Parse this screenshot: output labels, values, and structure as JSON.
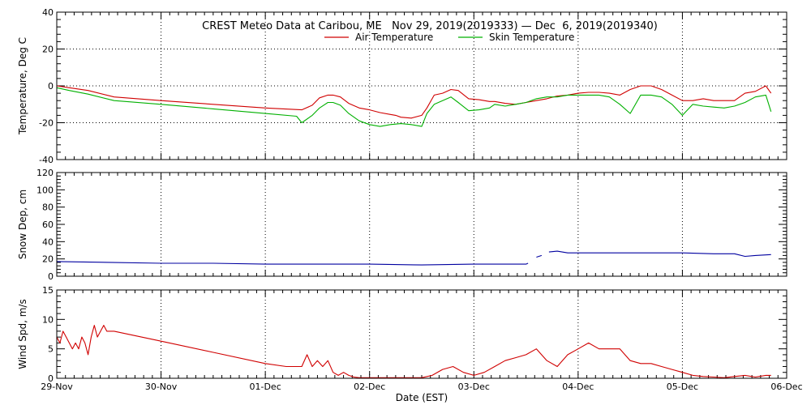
{
  "chart_data": {
    "type": "line",
    "title": "CREST Meteo Data at Caribou, ME   Nov 29, 2019(2019333) — Dec  6, 2019(2019340)",
    "xlabel": "Date (EST)",
    "x_ticks": [
      "29-Nov",
      "30-Nov",
      "01-Dec",
      "02-Dec",
      "03-Dec",
      "04-Dec",
      "05-Dec",
      "06-Dec"
    ],
    "xlim": [
      "2019-11-29",
      "2019-12-06"
    ],
    "panels": [
      {
        "ylabel": "Temperature, Deg C",
        "ylim": [
          -40,
          40
        ],
        "y_ticks": [
          -40,
          -20,
          0,
          20,
          40
        ],
        "legend": "top-center",
        "series": [
          {
            "name": "Air Temperature",
            "color": "#d00000",
            "x": [
              0,
              0.12,
              0.3,
              0.55,
              1.0,
              1.5,
              2.0,
              2.35,
              2.45,
              2.52,
              2.6,
              2.65,
              2.72,
              2.8,
              2.9,
              3.0,
              3.1,
              3.2,
              3.25,
              3.3,
              3.4,
              3.5,
              3.55,
              3.62,
              3.7,
              3.78,
              3.85,
              3.95,
              4.05,
              4.15,
              4.2,
              4.3,
              4.4,
              4.5,
              4.6,
              4.7,
              4.8,
              4.9,
              5.0,
              5.1,
              5.2,
              5.3,
              5.4,
              5.5,
              5.6,
              5.7,
              5.8,
              5.9,
              6.0,
              6.1,
              6.2,
              6.3,
              6.4,
              6.5,
              6.6,
              6.7,
              6.8,
              6.85
            ],
            "y": [
              0,
              -1,
              -2.5,
              -6,
              -8,
              -10,
              -12,
              -13,
              -10.5,
              -6.5,
              -5,
              -5,
              -6,
              -9.5,
              -12,
              -13,
              -14.5,
              -15.5,
              -16,
              -17,
              -17.5,
              -16,
              -12,
              -5,
              -4,
              -2,
              -2.5,
              -7,
              -7.5,
              -8.5,
              -8.5,
              -9.5,
              -10,
              -9,
              -8,
              -7,
              -5.5,
              -5,
              -4,
              -3.5,
              -3.5,
              -4,
              -5,
              -2,
              0,
              0,
              -2,
              -5,
              -8,
              -8,
              -7,
              -8,
              -8,
              -8,
              -4,
              -3,
              0,
              -4
            ]
          },
          {
            "name": "Skin Temperature",
            "color": "#00b000",
            "x": [
              0,
              0.12,
              0.3,
              0.55,
              1.0,
              1.5,
              2.0,
              2.3,
              2.35,
              2.45,
              2.52,
              2.6,
              2.65,
              2.72,
              2.8,
              2.9,
              3.0,
              3.1,
              3.2,
              3.3,
              3.4,
              3.5,
              3.55,
              3.62,
              3.7,
              3.78,
              3.85,
              3.95,
              4.05,
              4.15,
              4.2,
              4.3,
              4.4,
              4.5,
              4.6,
              4.7,
              4.8,
              4.9,
              5.0,
              5.1,
              5.2,
              5.3,
              5.4,
              5.5,
              5.6,
              5.7,
              5.8,
              5.9,
              6.0,
              6.1,
              6.2,
              6.3,
              6.4,
              6.5,
              6.6,
              6.7,
              6.8,
              6.85
            ],
            "y": [
              -1,
              -2.5,
              -4.5,
              -8,
              -10,
              -12.5,
              -15,
              -16.5,
              -20,
              -16,
              -12,
              -9,
              -9,
              -10.5,
              -15,
              -19,
              -21,
              -22,
              -21,
              -20.5,
              -21,
              -22,
              -15,
              -10,
              -8,
              -6,
              -9,
              -13.5,
              -13,
              -12,
              -10,
              -11,
              -10,
              -9,
              -7,
              -6,
              -6,
              -5,
              -5,
              -5,
              -5,
              -6,
              -10,
              -15,
              -5,
              -5,
              -6,
              -10,
              -16,
              -10,
              -11,
              -11.5,
              -12,
              -11,
              -9,
              -6,
              -5,
              -14
            ]
          }
        ]
      },
      {
        "ylabel": "Snow Dep, cm",
        "ylim": [
          0,
          120
        ],
        "y_ticks": [
          0,
          20,
          40,
          60,
          80,
          100,
          120
        ],
        "series": [
          {
            "color": "#0000a0",
            "segments": [
              {
                "x": [
                  0,
                  0.5,
                  1.0,
                  1.5,
                  2.0,
                  2.5,
                  3.0,
                  3.5,
                  4.0,
                  4.5,
                  4.52
                ],
                "y": [
                  17,
                  16,
                  15,
                  15,
                  14,
                  14,
                  14,
                  13,
                  14,
                  14,
                  15
                ]
              },
              {
                "x": [
                  4.6,
                  4.65
                ],
                "y": [
                  22,
                  24
                ]
              },
              {
                "x": [
                  4.72,
                  4.8,
                  4.9,
                  5.0,
                  5.5,
                  6.0,
                  6.3,
                  6.5,
                  6.6,
                  6.7,
                  6.85
                ],
                "y": [
                  28,
                  29,
                  27,
                  27,
                  27,
                  27,
                  26,
                  26,
                  23,
                  24,
                  25
                ]
              }
            ]
          }
        ]
      },
      {
        "ylabel": "Wind Spd, m/s",
        "ylim": [
          0,
          15
        ],
        "y_ticks": [
          0,
          5,
          10,
          15
        ],
        "series": [
          {
            "color": "#d00000",
            "x": [
              0,
              0.03,
              0.06,
              0.09,
              0.12,
              0.15,
              0.18,
              0.21,
              0.24,
              0.27,
              0.3,
              0.33,
              0.36,
              0.39,
              0.42,
              0.45,
              0.48,
              0.5,
              0.55,
              1.0,
              1.5,
              2.0,
              2.2,
              2.35,
              2.4,
              2.45,
              2.5,
              2.55,
              2.6,
              2.65,
              2.7,
              2.75,
              2.8,
              2.85,
              2.9,
              3.0,
              3.1,
              3.3,
              3.5,
              3.6,
              3.7,
              3.8,
              3.9,
              4.0,
              4.1,
              4.2,
              4.3,
              4.4,
              4.5,
              4.6,
              4.7,
              4.8,
              4.9,
              5.0,
              5.1,
              5.2,
              5.3,
              5.4,
              5.5,
              5.6,
              5.7,
              5.8,
              5.9,
              6.0,
              6.1,
              6.2,
              6.3,
              6.4,
              6.5,
              6.6,
              6.7,
              6.8,
              6.85
            ],
            "y": [
              7,
              6,
              8,
              7,
              6,
              5,
              6,
              5,
              7,
              6,
              4,
              7,
              9,
              7,
              8,
              9,
              8,
              8,
              8,
              6.3,
              4.4,
              2.5,
              2,
              2,
              4,
              2,
              3,
              2,
              3,
              1,
              0.5,
              1,
              0.5,
              0.2,
              0.1,
              0.1,
              0.1,
              0.1,
              0.1,
              0.5,
              1.5,
              2,
              1,
              0.5,
              1,
              2,
              3,
              3.5,
              4,
              5,
              3,
              2,
              4,
              5,
              6,
              5,
              5,
              5,
              3,
              2.5,
              2.5,
              2,
              1.5,
              1,
              0.5,
              0.3,
              0.2,
              0.1,
              0.3,
              0.5,
              0.2,
              0.5,
              0.5
            ]
          }
        ]
      }
    ]
  }
}
